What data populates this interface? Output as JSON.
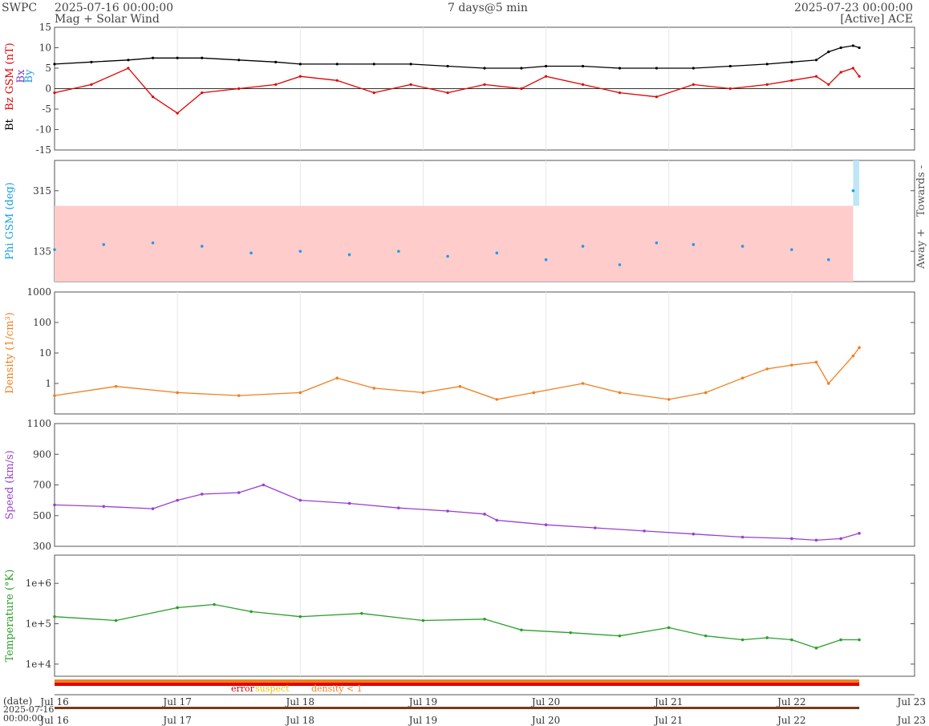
{
  "header": {
    "source": "SWPC",
    "start_time": "2025-07-16 00:00:00",
    "subtitle": "Mag + Solar Wind",
    "span": "7 days@5 min",
    "end_time": "2025-07-23 00:00:00",
    "spacecraft": "[Active] ACE"
  },
  "colors": {
    "bt": "#000000",
    "bz": "#e00000",
    "bx": "#7b3fc4",
    "by": "#1aa0e0",
    "phi": "#1aa0e0",
    "away_band": "#ffcccc",
    "towards_band": "#bfe6f7",
    "density": "#f07f1e",
    "speed": "#9a40d0",
    "temperature": "#2aa02a",
    "error": "#e00000",
    "suspect": "#f0c000",
    "density_flag": "#f07f1e"
  },
  "time_axis": {
    "ticks": [
      "Jul 16",
      "Jul 17",
      "Jul 18",
      "Jul 19",
      "Jul 20",
      "Jul 21",
      "Jul 22",
      "Jul 23"
    ],
    "date_label": "(date)",
    "range_start_date": "2025-07-16",
    "range_start_time": "00:00:00"
  },
  "chart_data": [
    {
      "type": "line",
      "id": "mag",
      "ylabel_parts": [
        "Bt",
        "Bz GSM (nT)"
      ],
      "legend_aux": [
        "Bx",
        "By"
      ],
      "ylim": [
        -15,
        15
      ],
      "yticks": [
        "15",
        "10",
        "5",
        "0",
        "-5",
        "-10",
        "-15"
      ],
      "x_days": [
        0,
        0.3,
        0.6,
        0.8,
        1.0,
        1.2,
        1.5,
        1.8,
        2.0,
        2.3,
        2.6,
        2.9,
        3.2,
        3.5,
        3.8,
        4.0,
        4.3,
        4.6,
        4.9,
        5.2,
        5.5,
        5.8,
        6.0,
        6.2,
        6.3,
        6.4,
        6.5,
        6.55
      ],
      "series": [
        {
          "name": "Bt",
          "values": [
            6,
            6.5,
            7,
            7.5,
            7.5,
            7.5,
            7,
            6.5,
            6,
            6,
            6,
            6,
            5.5,
            5,
            5,
            5.5,
            5.5,
            5,
            5,
            5,
            5.5,
            6,
            6.5,
            7,
            9,
            10,
            10.5,
            10
          ]
        },
        {
          "name": "Bz",
          "values": [
            -1,
            1,
            5,
            -2,
            -6,
            -1,
            0,
            1,
            3,
            2,
            -1,
            1,
            -1,
            1,
            0,
            3,
            1,
            -1,
            -2,
            1,
            0,
            1,
            2,
            3,
            1,
            4,
            5,
            3
          ]
        }
      ]
    },
    {
      "type": "scatter",
      "id": "phi",
      "ylabel": "Phi GSM (deg)",
      "ylim": [
        45,
        405
      ],
      "yticks": [
        "315",
        "135"
      ],
      "side_labels": [
        "Towards -",
        "Away +"
      ],
      "x_days": [
        0,
        0.4,
        0.8,
        1.2,
        1.6,
        2.0,
        2.4,
        2.8,
        3.2,
        3.6,
        4.0,
        4.3,
        4.6,
        4.9,
        5.2,
        5.6,
        6.0,
        6.3,
        6.5
      ],
      "values": [
        140,
        155,
        160,
        150,
        130,
        135,
        125,
        135,
        120,
        130,
        110,
        150,
        95,
        160,
        155,
        150,
        140,
        110,
        315
      ]
    },
    {
      "type": "line",
      "id": "density",
      "ylabel": "Density (1/cm³)",
      "scale": "log",
      "ylim": [
        0.1,
        1000
      ],
      "yticks": [
        "1000",
        "100",
        "10",
        "1"
      ],
      "x_days": [
        0,
        0.5,
        1.0,
        1.5,
        2.0,
        2.3,
        2.6,
        3.0,
        3.3,
        3.6,
        3.9,
        4.3,
        4.6,
        5.0,
        5.3,
        5.6,
        5.8,
        6.0,
        6.2,
        6.3,
        6.5,
        6.55
      ],
      "values": [
        0.4,
        0.8,
        0.5,
        0.4,
        0.5,
        1.5,
        0.7,
        0.5,
        0.8,
        0.3,
        0.5,
        1,
        0.5,
        0.3,
        0.5,
        1.5,
        3,
        4,
        5,
        1,
        8,
        15
      ]
    },
    {
      "type": "line",
      "id": "speed",
      "ylabel": "Speed (km/s)",
      "ylim": [
        300,
        1100
      ],
      "yticks": [
        "1100",
        "900",
        "700",
        "500",
        "300"
      ],
      "x_days": [
        0,
        0.4,
        0.8,
        1.0,
        1.2,
        1.5,
        1.7,
        2.0,
        2.4,
        2.8,
        3.2,
        3.5,
        3.6,
        4.0,
        4.4,
        4.8,
        5.2,
        5.6,
        6.0,
        6.2,
        6.4,
        6.55
      ],
      "values": [
        570,
        560,
        545,
        600,
        640,
        650,
        700,
        600,
        580,
        550,
        530,
        510,
        470,
        440,
        420,
        400,
        380,
        360,
        350,
        340,
        350,
        385
      ]
    },
    {
      "type": "line",
      "id": "temperature",
      "ylabel": "Temperature (°K)",
      "scale": "log",
      "ylim": [
        5000,
        5000000
      ],
      "yticks": [
        "1e+6",
        "1e+5",
        "1e+4"
      ],
      "x_days": [
        0,
        0.5,
        1.0,
        1.3,
        1.6,
        2.0,
        2.5,
        3.0,
        3.5,
        3.8,
        4.2,
        4.6,
        5.0,
        5.3,
        5.6,
        5.8,
        6.0,
        6.2,
        6.4,
        6.55
      ],
      "values": [
        150000,
        120000,
        250000,
        300000,
        200000,
        150000,
        180000,
        120000,
        130000,
        70000,
        60000,
        50000,
        80000,
        50000,
        40000,
        45000,
        40000,
        25000,
        40000,
        40000
      ]
    }
  ],
  "flags": {
    "labels": {
      "error": "error",
      "suspect": "suspect",
      "density": "density < 1"
    }
  }
}
